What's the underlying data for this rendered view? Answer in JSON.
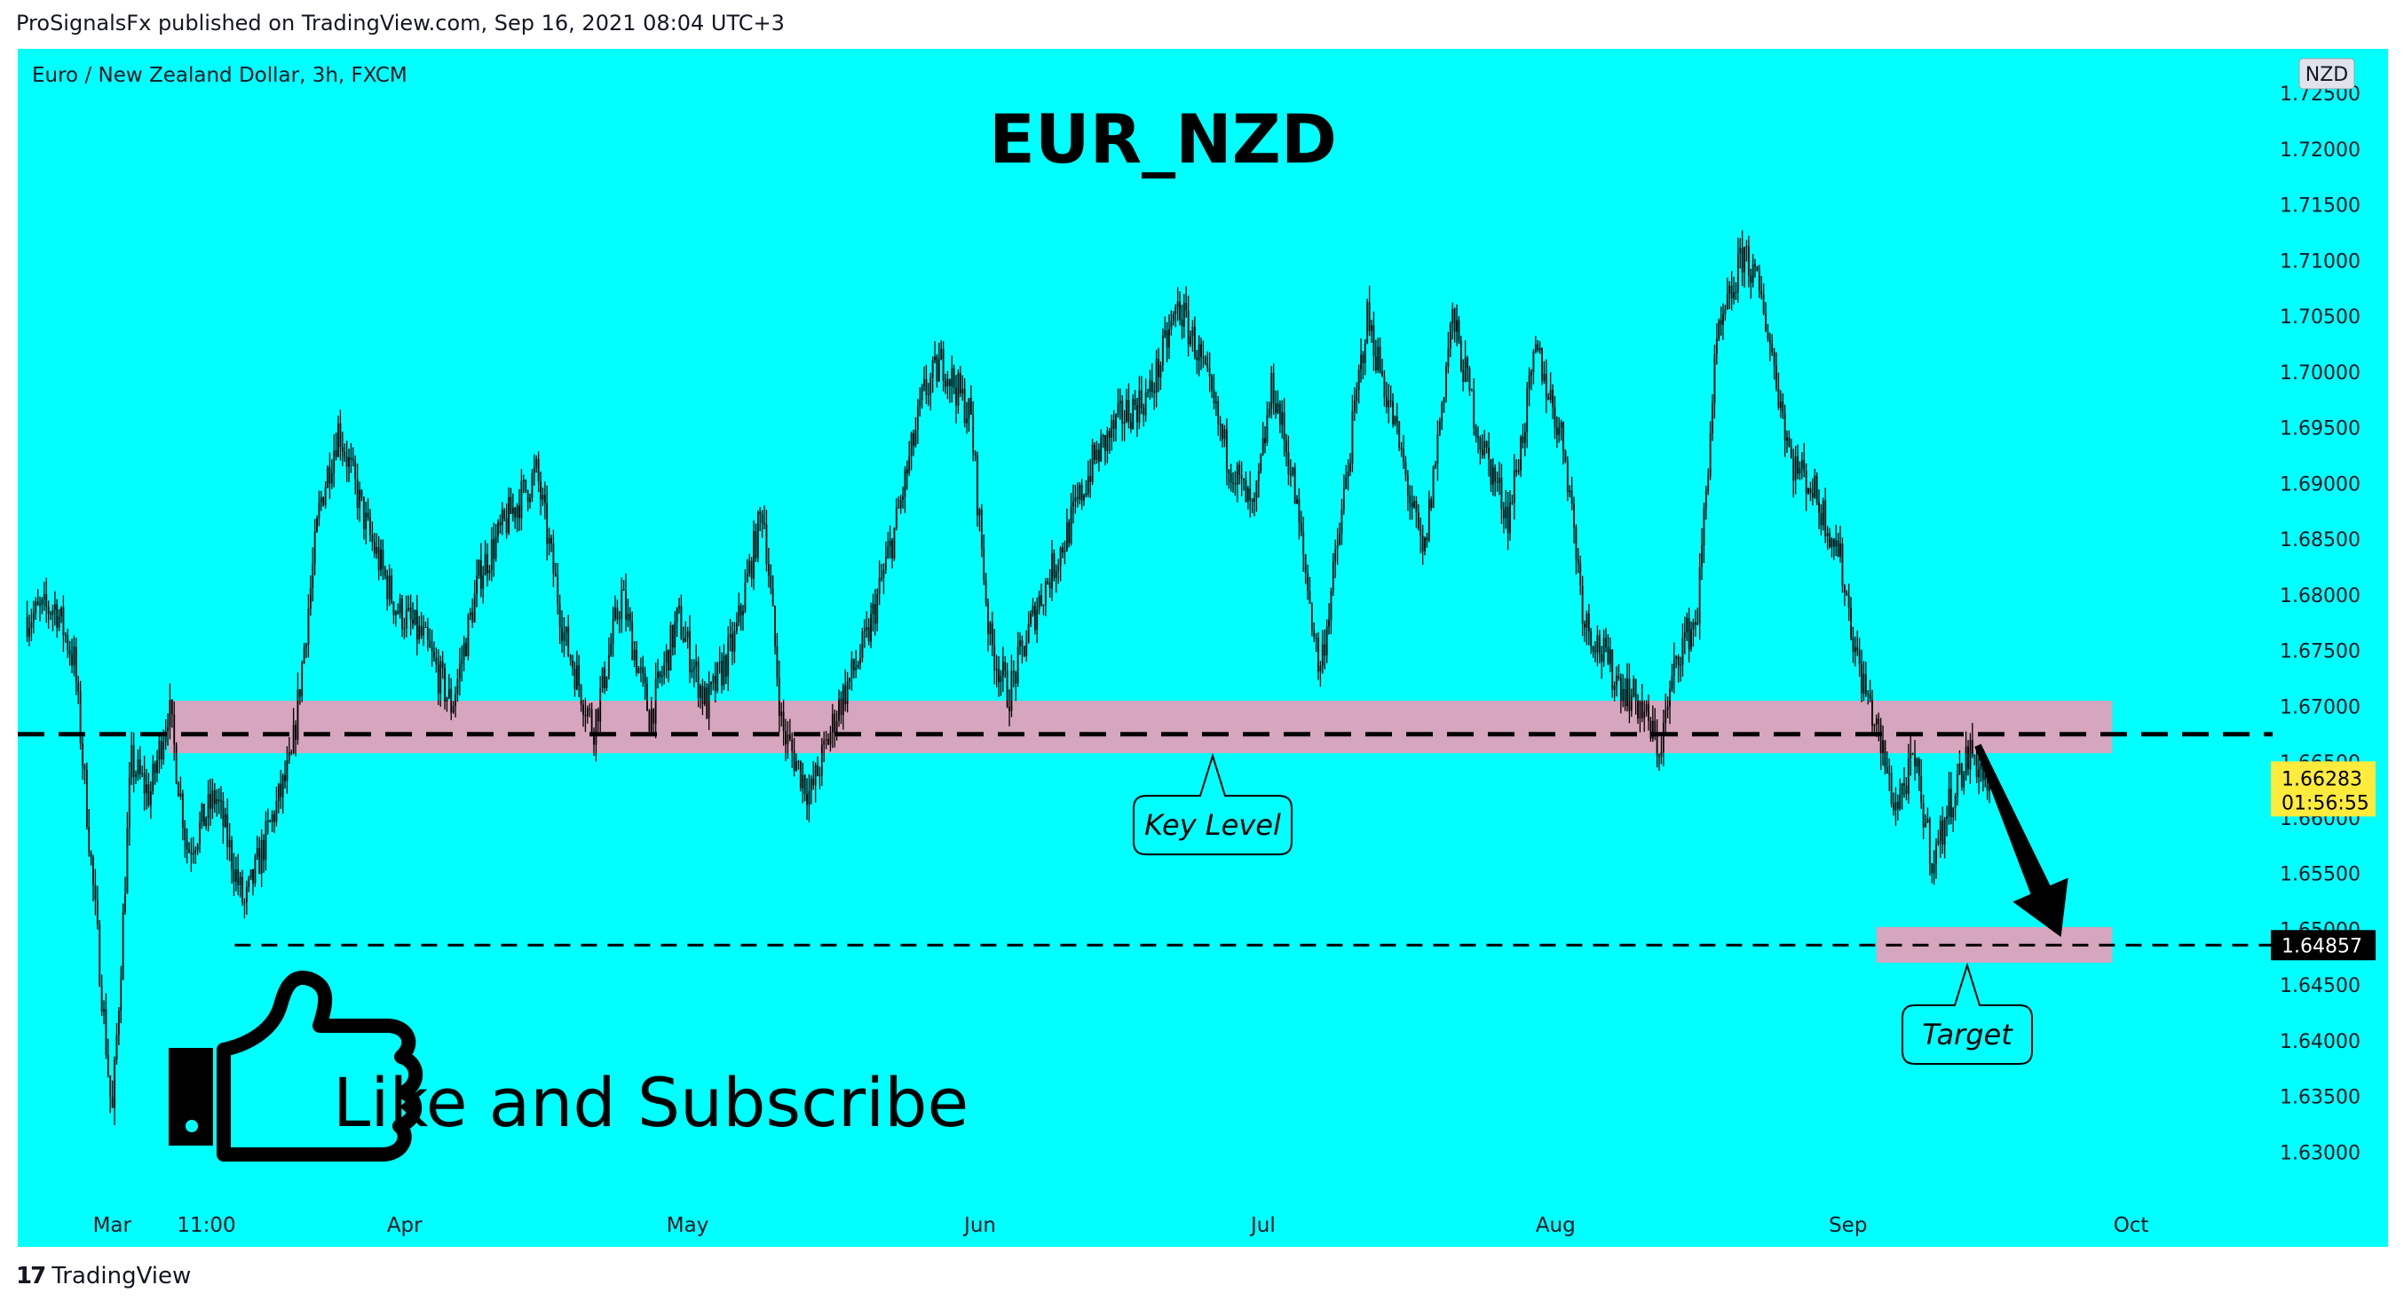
{
  "header": {
    "published": "ProSignalsFx published on TradingView.com, Sep 16, 2021 08:04 UTC+3"
  },
  "footer": {
    "brand": "TradingView",
    "logo_glyph": "17"
  },
  "colors": {
    "background": "#00FFFF",
    "zone": "#D5A6BD",
    "candle": "#000000",
    "current_price_badge": "#FFEB3B"
  },
  "chart_data": {
    "type": "candlestick",
    "symbol_label": "Euro / New Zealand Dollar, 3h, FXCM",
    "title": "EUR_NZD",
    "currency_badge": "NZD",
    "y_ticks": [
      "1.72500",
      "1.72000",
      "1.71500",
      "1.71000",
      "1.70500",
      "1.70000",
      "1.69500",
      "1.69000",
      "1.68500",
      "1.68000",
      "1.67500",
      "1.67000",
      "1.66500",
      "1.66000",
      "1.65500",
      "1.65000",
      "1.64500",
      "1.64000",
      "1.63500",
      "1.63000"
    ],
    "ylim": [
      1.6215,
      1.729
    ],
    "x_ticks": [
      "Mar",
      "11:00",
      "Apr",
      "May",
      "Jun",
      "Jul",
      "Aug",
      "Sep",
      "Oct"
    ],
    "price_path": [
      {
        "x": "Feb 20",
        "y": 1.678
      },
      {
        "x": "Feb 23",
        "y": 1.679
      },
      {
        "x": "Feb 25",
        "y": 1.674
      },
      {
        "x": "Feb 26",
        "y": 1.664
      },
      {
        "x": "Mar 1",
        "y": 1.633
      },
      {
        "x": "Mar 2",
        "y": 1.648
      },
      {
        "x": "Mar 3",
        "y": 1.665
      },
      {
        "x": "Mar 5",
        "y": 1.662
      },
      {
        "x": "Mar 7",
        "y": 1.67
      },
      {
        "x": "Mar 9",
        "y": 1.657
      },
      {
        "x": "Mar 12",
        "y": 1.662
      },
      {
        "x": "Mar 15",
        "y": 1.652
      },
      {
        "x": "Mar 18",
        "y": 1.66
      },
      {
        "x": "Mar 20",
        "y": 1.665
      },
      {
        "x": "Mar 23",
        "y": 1.688
      },
      {
        "x": "Mar 25",
        "y": 1.695
      },
      {
        "x": "Mar 28",
        "y": 1.686
      },
      {
        "x": "Mar 31",
        "y": 1.679
      },
      {
        "x": "Apr 3",
        "y": 1.676
      },
      {
        "x": "Apr 6",
        "y": 1.67
      },
      {
        "x": "Apr 9",
        "y": 1.682
      },
      {
        "x": "Apr 12",
        "y": 1.687
      },
      {
        "x": "Apr 15",
        "y": 1.691
      },
      {
        "x": "Apr 18",
        "y": 1.676
      },
      {
        "x": "Apr 21",
        "y": 1.668
      },
      {
        "x": "Apr 24",
        "y": 1.68
      },
      {
        "x": "Apr 27",
        "y": 1.669
      },
      {
        "x": "Apr 30",
        "y": 1.678
      },
      {
        "x": "May 3",
        "y": 1.67
      },
      {
        "x": "May 6",
        "y": 1.676
      },
      {
        "x": "May 9",
        "y": 1.688
      },
      {
        "x": "May 11",
        "y": 1.668
      },
      {
        "x": "May 14",
        "y": 1.662
      },
      {
        "x": "May 17",
        "y": 1.67
      },
      {
        "x": "May 20",
        "y": 1.676
      },
      {
        "x": "May 23",
        "y": 1.686
      },
      {
        "x": "May 26",
        "y": 1.698
      },
      {
        "x": "May 28",
        "y": 1.701
      },
      {
        "x": "May 31",
        "y": 1.696
      },
      {
        "x": "Jun 2",
        "y": 1.676
      },
      {
        "x": "Jun 4",
        "y": 1.671
      },
      {
        "x": "Jun 7",
        "y": 1.679
      },
      {
        "x": "Jun 10",
        "y": 1.685
      },
      {
        "x": "Jun 13",
        "y": 1.692
      },
      {
        "x": "Jun 16",
        "y": 1.696
      },
      {
        "x": "Jun 19",
        "y": 1.698
      },
      {
        "x": "Jun 22",
        "y": 1.706
      },
      {
        "x": "Jun 24",
        "y": 1.702
      },
      {
        "x": "Jun 27",
        "y": 1.693
      },
      {
        "x": "Jun 30",
        "y": 1.687
      },
      {
        "x": "Jul 2",
        "y": 1.699
      },
      {
        "x": "Jul 4",
        "y": 1.691
      },
      {
        "x": "Jul 7",
        "y": 1.673
      },
      {
        "x": "Jul 9",
        "y": 1.685
      },
      {
        "x": "Jul 12",
        "y": 1.705
      },
      {
        "x": "Jul 15",
        "y": 1.695
      },
      {
        "x": "Jul 18",
        "y": 1.683
      },
      {
        "x": "Jul 21",
        "y": 1.705
      },
      {
        "x": "Jul 24",
        "y": 1.694
      },
      {
        "x": "Jul 27",
        "y": 1.687
      },
      {
        "x": "Jul 30",
        "y": 1.702
      },
      {
        "x": "Aug 2",
        "y": 1.693
      },
      {
        "x": "Aug 4",
        "y": 1.678
      },
      {
        "x": "Aug 7",
        "y": 1.673
      },
      {
        "x": "Aug 10",
        "y": 1.67
      },
      {
        "x": "Aug 12",
        "y": 1.666
      },
      {
        "x": "Aug 14",
        "y": 1.675
      },
      {
        "x": "Aug 16",
        "y": 1.678
      },
      {
        "x": "Aug 18",
        "y": 1.702
      },
      {
        "x": "Aug 21",
        "y": 1.711
      },
      {
        "x": "Aug 23",
        "y": 1.706
      },
      {
        "x": "Aug 26",
        "y": 1.692
      },
      {
        "x": "Aug 28",
        "y": 1.69
      },
      {
        "x": "Aug 31",
        "y": 1.684
      },
      {
        "x": "Sep 2",
        "y": 1.674
      },
      {
        "x": "Sep 4",
        "y": 1.668
      },
      {
        "x": "Sep 6",
        "y": 1.661
      },
      {
        "x": "Sep 8",
        "y": 1.665
      },
      {
        "x": "Sep 10",
        "y": 1.656
      },
      {
        "x": "Sep 12",
        "y": 1.662
      },
      {
        "x": "Sep 14",
        "y": 1.666
      },
      {
        "x": "Sep 16",
        "y": 1.6628
      }
    ],
    "key_level": {
      "label": "Key Level",
      "low": 1.6658,
      "high": 1.6705,
      "line": 1.6675
    },
    "target": {
      "label": "Target",
      "low": 1.647,
      "high": 1.6502,
      "line": 1.64857
    },
    "current_price": {
      "value": "1.66283",
      "countdown": "01:56:55"
    },
    "target_price_label": "1.64857",
    "promo": {
      "text": "Like and Subscribe",
      "icon": "thumbs-up-icon"
    },
    "arrow": "down"
  }
}
